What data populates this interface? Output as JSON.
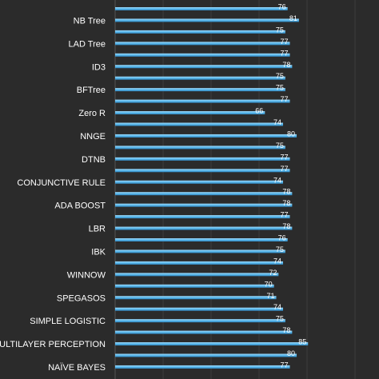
{
  "chart_data": {
    "type": "bar",
    "orientation": "horizontal",
    "title": "",
    "xlabel": "",
    "ylabel": "",
    "grid": true,
    "xlim": [
      0,
      100
    ],
    "bar_color": "#5bb8ea",
    "background_color": "#2b2b2b",
    "rows": [
      {
        "label": "",
        "value": 76
      },
      {
        "label": "NB Tree",
        "value": 81
      },
      {
        "label": "",
        "value": 75
      },
      {
        "label": "LAD Tree",
        "value": 77
      },
      {
        "label": "",
        "value": 77
      },
      {
        "label": "ID3",
        "value": 78
      },
      {
        "label": "",
        "value": 75
      },
      {
        "label": "BFTree",
        "value": 75
      },
      {
        "label": "",
        "value": 77
      },
      {
        "label": "Zero R",
        "value": 66
      },
      {
        "label": "",
        "value": 74
      },
      {
        "label": "NNGE",
        "value": 80
      },
      {
        "label": "",
        "value": 75
      },
      {
        "label": "DTNB",
        "value": 77
      },
      {
        "label": "",
        "value": 77
      },
      {
        "label": "CONJUNCTIVE RULE",
        "value": 74
      },
      {
        "label": "",
        "value": 78
      },
      {
        "label": "ADA BOOST",
        "value": 78
      },
      {
        "label": "",
        "value": 77
      },
      {
        "label": "LBR",
        "value": 78
      },
      {
        "label": "",
        "value": 76
      },
      {
        "label": "IBK",
        "value": 75
      },
      {
        "label": "",
        "value": 74
      },
      {
        "label": "WINNOW",
        "value": 72
      },
      {
        "label": "",
        "value": 70
      },
      {
        "label": "SPEGASOS",
        "value": 71
      },
      {
        "label": "",
        "value": 74
      },
      {
        "label": "SIMPLE LOGISTIC",
        "value": 75
      },
      {
        "label": "",
        "value": 78
      },
      {
        "label": "MULTILAYER PERCEPTION",
        "value": 85
      },
      {
        "label": "",
        "value": 80
      },
      {
        "label": "NAÏVE BAYES",
        "value": 77
      }
    ]
  }
}
